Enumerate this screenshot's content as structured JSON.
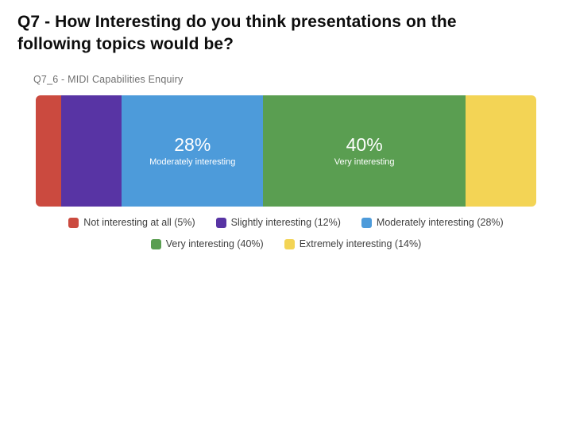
{
  "slide": {
    "title": "Q7 - How Interesting do you think presentations on the following topics would be?"
  },
  "chart_data": {
    "type": "bar",
    "variant": "horizontal-stacked-single-bar",
    "title": "Q7_6 - MIDI Capabilities Enquiry",
    "unit": "%",
    "axis": "none",
    "grid": false,
    "categories": [
      "Not interesting at all",
      "Slightly interesting",
      "Moderately interesting",
      "Very interesting",
      "Extremely interesting"
    ],
    "values": [
      5,
      12,
      28,
      40,
      14
    ],
    "colors": [
      "#cb4a3f",
      "#5834a4",
      "#4d9bda",
      "#5a9e51",
      "#f3d455"
    ],
    "label_text_color": "#ffffff",
    "segment_labels": [
      {
        "show": false,
        "value_text": "5%",
        "label": "Not interesting at all"
      },
      {
        "show": false,
        "value_text": "12%",
        "label": "Slightly interesting"
      },
      {
        "show": true,
        "value_text": "28%",
        "label": "Moderately interesting"
      },
      {
        "show": true,
        "value_text": "40%",
        "label": "Very interesting"
      },
      {
        "show": false,
        "value_text": "14%",
        "label": "Extremely interesting"
      }
    ],
    "legend": {
      "position": "bottom",
      "entries": [
        "Not interesting at all (5%)",
        "Slightly interesting (12%)",
        "Moderately interesting (28%)",
        "Very interesting (40%)",
        "Extremely interesting (14%)"
      ]
    }
  }
}
